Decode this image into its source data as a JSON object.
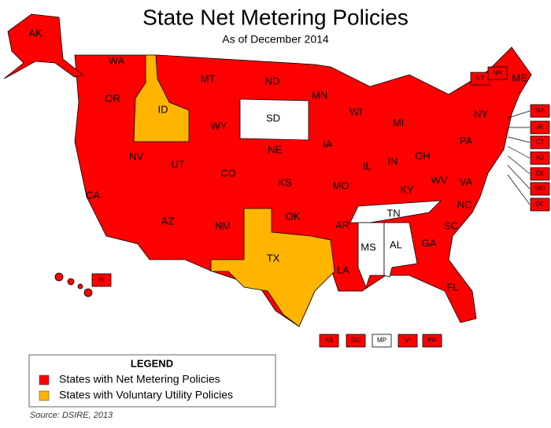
{
  "title": "State Net Metering Policies",
  "subtitle": "As of December 2014",
  "legend": {
    "title": "LEGEND",
    "items": [
      {
        "label": "States with Net Metering Policies",
        "color": "#ff0000"
      },
      {
        "label": "States with Voluntary Utility Policies",
        "color": "#ffb400"
      }
    ]
  },
  "states": [
    {
      "label": "AK",
      "color": "#ff0000"
    },
    {
      "label": "WA",
      "color": "#ff0000"
    },
    {
      "label": "OR",
      "color": "#ff0000"
    },
    {
      "label": "ID",
      "color": "#ffb400"
    },
    {
      "label": "MT",
      "color": "#ff0000"
    },
    {
      "label": "ND",
      "color": "#ff0000"
    },
    {
      "label": "SD",
      "color": "#ffffff"
    },
    {
      "label": "MN",
      "color": "#ff0000"
    },
    {
      "label": "WI",
      "color": "#ff0000"
    },
    {
      "label": "MI",
      "color": "#ff0000"
    },
    {
      "label": "NY",
      "color": "#ff0000"
    },
    {
      "label": "ME",
      "color": "#ff0000"
    },
    {
      "label": "VT",
      "color": "#ff0000"
    },
    {
      "label": "NH",
      "color": "#ff0000"
    },
    {
      "label": "MA",
      "color": "#ff0000"
    },
    {
      "label": "RI",
      "color": "#ff0000"
    },
    {
      "label": "CT",
      "color": "#ff0000"
    },
    {
      "label": "NJ",
      "color": "#ff0000"
    },
    {
      "label": "DE",
      "color": "#ff0000"
    },
    {
      "label": "MD",
      "color": "#ff0000"
    },
    {
      "label": "DC",
      "color": "#ff0000"
    },
    {
      "label": "WY",
      "color": "#ff0000"
    },
    {
      "label": "NE",
      "color": "#ff0000"
    },
    {
      "label": "IA",
      "color": "#ff0000"
    },
    {
      "label": "IL",
      "color": "#ff0000"
    },
    {
      "label": "IN",
      "color": "#ff0000"
    },
    {
      "label": "OH",
      "color": "#ff0000"
    },
    {
      "label": "PA",
      "color": "#ff0000"
    },
    {
      "label": "NV",
      "color": "#ff0000"
    },
    {
      "label": "UT",
      "color": "#ff0000"
    },
    {
      "label": "CO",
      "color": "#ff0000"
    },
    {
      "label": "KS",
      "color": "#ff0000"
    },
    {
      "label": "MO",
      "color": "#ff0000"
    },
    {
      "label": "KY",
      "color": "#ff0000"
    },
    {
      "label": "WV",
      "color": "#ff0000"
    },
    {
      "label": "VA",
      "color": "#ff0000"
    },
    {
      "label": "CA",
      "color": "#ff0000"
    },
    {
      "label": "AZ",
      "color": "#ff0000"
    },
    {
      "label": "NM",
      "color": "#ff0000"
    },
    {
      "label": "OK",
      "color": "#ff0000"
    },
    {
      "label": "AR",
      "color": "#ff0000"
    },
    {
      "label": "TN",
      "color": "#ffffff"
    },
    {
      "label": "NC",
      "color": "#ff0000"
    },
    {
      "label": "SC",
      "color": "#ff0000"
    },
    {
      "label": "MS",
      "color": "#ffffff"
    },
    {
      "label": "AL",
      "color": "#ffffff"
    },
    {
      "label": "GA",
      "color": "#ff0000"
    },
    {
      "label": "TX",
      "color": "#ffb400"
    },
    {
      "label": "LA",
      "color": "#ff0000"
    },
    {
      "label": "FL",
      "color": "#ff0000"
    },
    {
      "label": "HI",
      "color": "#ff0000"
    },
    {
      "label": "AS",
      "color": "#ff0000"
    },
    {
      "label": "GU",
      "color": "#ff0000"
    },
    {
      "label": "MP",
      "color": "#ffffff"
    },
    {
      "label": "VI",
      "color": "#ff0000"
    },
    {
      "label": "PR",
      "color": "#ff0000"
    }
  ],
  "source": "Source: DSIRE, 2013"
}
